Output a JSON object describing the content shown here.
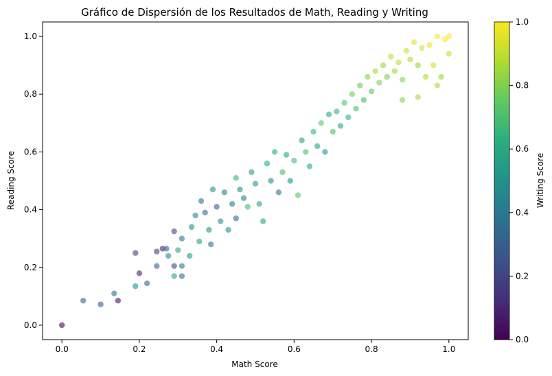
{
  "chart_data": {
    "type": "scatter",
    "title": "Gráfico de Dispersión de los Resultados de Math, Reading y Writing",
    "xlabel": "Math Score",
    "ylabel": "Reading Score",
    "xlim": [
      -0.05,
      1.05
    ],
    "ylim": [
      -0.05,
      1.05
    ],
    "xticks": [
      "0.0",
      "0.2",
      "0.4",
      "0.6",
      "0.8",
      "1.0"
    ],
    "yticks": [
      "0.0",
      "0.2",
      "0.4",
      "0.6",
      "0.8",
      "1.0"
    ],
    "grid": false,
    "colorbar": {
      "label": "Writing Score",
      "colormap": "viridis",
      "range": [
        0,
        1
      ],
      "ticks": [
        "0.0",
        "0.2",
        "0.4",
        "0.6",
        "0.8",
        "1.0"
      ]
    },
    "marker_alpha": 0.6,
    "points": [
      [
        0.0,
        0.0,
        0.0
      ],
      [
        0.055,
        0.085,
        0.32
      ],
      [
        0.1,
        0.072,
        0.3
      ],
      [
        0.135,
        0.11,
        0.38
      ],
      [
        0.145,
        0.085,
        0.05
      ],
      [
        0.19,
        0.25,
        0.18
      ],
      [
        0.19,
        0.135,
        0.5
      ],
      [
        0.2,
        0.18,
        0.1
      ],
      [
        0.22,
        0.145,
        0.34
      ],
      [
        0.245,
        0.205,
        0.3
      ],
      [
        0.245,
        0.255,
        0.18
      ],
      [
        0.26,
        0.265,
        0.1
      ],
      [
        0.27,
        0.265,
        0.3
      ],
      [
        0.275,
        0.24,
        0.48
      ],
      [
        0.29,
        0.205,
        0.22
      ],
      [
        0.29,
        0.17,
        0.6
      ],
      [
        0.29,
        0.325,
        0.2
      ],
      [
        0.31,
        0.205,
        0.4
      ],
      [
        0.31,
        0.17,
        0.36
      ],
      [
        0.3,
        0.26,
        0.6
      ],
      [
        0.31,
        0.3,
        0.38
      ],
      [
        0.33,
        0.24,
        0.55
      ],
      [
        0.335,
        0.34,
        0.5
      ],
      [
        0.345,
        0.38,
        0.45
      ],
      [
        0.355,
        0.29,
        0.58
      ],
      [
        0.36,
        0.43,
        0.4
      ],
      [
        0.37,
        0.39,
        0.35
      ],
      [
        0.38,
        0.33,
        0.52
      ],
      [
        0.385,
        0.28,
        0.4
      ],
      [
        0.39,
        0.47,
        0.5
      ],
      [
        0.4,
        0.41,
        0.3
      ],
      [
        0.41,
        0.36,
        0.5
      ],
      [
        0.42,
        0.46,
        0.45
      ],
      [
        0.43,
        0.33,
        0.5
      ],
      [
        0.44,
        0.42,
        0.4
      ],
      [
        0.45,
        0.51,
        0.65
      ],
      [
        0.45,
        0.37,
        0.35
      ],
      [
        0.46,
        0.47,
        0.5
      ],
      [
        0.47,
        0.44,
        0.45
      ],
      [
        0.48,
        0.41,
        0.68
      ],
      [
        0.49,
        0.53,
        0.55
      ],
      [
        0.5,
        0.49,
        0.52
      ],
      [
        0.51,
        0.42,
        0.6
      ],
      [
        0.52,
        0.36,
        0.58
      ],
      [
        0.53,
        0.56,
        0.6
      ],
      [
        0.54,
        0.5,
        0.48
      ],
      [
        0.55,
        0.6,
        0.62
      ],
      [
        0.56,
        0.46,
        0.4
      ],
      [
        0.57,
        0.53,
        0.7
      ],
      [
        0.58,
        0.59,
        0.6
      ],
      [
        0.59,
        0.5,
        0.5
      ],
      [
        0.6,
        0.57,
        0.68
      ],
      [
        0.61,
        0.45,
        0.72
      ],
      [
        0.62,
        0.64,
        0.55
      ],
      [
        0.63,
        0.6,
        0.7
      ],
      [
        0.64,
        0.55,
        0.62
      ],
      [
        0.65,
        0.67,
        0.66
      ],
      [
        0.66,
        0.62,
        0.58
      ],
      [
        0.67,
        0.7,
        0.74
      ],
      [
        0.68,
        0.6,
        0.5
      ],
      [
        0.69,
        0.73,
        0.62
      ],
      [
        0.7,
        0.67,
        0.7
      ],
      [
        0.71,
        0.74,
        0.66
      ],
      [
        0.72,
        0.69,
        0.6
      ],
      [
        0.73,
        0.77,
        0.72
      ],
      [
        0.74,
        0.72,
        0.64
      ],
      [
        0.75,
        0.8,
        0.78
      ],
      [
        0.76,
        0.75,
        0.7
      ],
      [
        0.77,
        0.83,
        0.76
      ],
      [
        0.78,
        0.78,
        0.68
      ],
      [
        0.79,
        0.86,
        0.82
      ],
      [
        0.8,
        0.81,
        0.74
      ],
      [
        0.81,
        0.88,
        0.86
      ],
      [
        0.82,
        0.84,
        0.8
      ],
      [
        0.83,
        0.9,
        0.84
      ],
      [
        0.84,
        0.86,
        0.78
      ],
      [
        0.85,
        0.93,
        0.9
      ],
      [
        0.86,
        0.88,
        0.86
      ],
      [
        0.87,
        0.91,
        0.9
      ],
      [
        0.88,
        0.85,
        0.8
      ],
      [
        0.89,
        0.95,
        0.92
      ],
      [
        0.9,
        0.92,
        0.88
      ],
      [
        0.91,
        0.98,
        0.96
      ],
      [
        0.92,
        0.9,
        0.84
      ],
      [
        0.93,
        0.96,
        0.94
      ],
      [
        0.94,
        0.86,
        0.88
      ],
      [
        0.95,
        0.97,
        0.98
      ],
      [
        0.96,
        0.9,
        0.92
      ],
      [
        0.97,
        1.0,
        1.0
      ],
      [
        0.98,
        0.86,
        0.85
      ],
      [
        0.99,
        0.99,
        1.0
      ],
      [
        1.0,
        1.0,
        1.0
      ],
      [
        1.0,
        0.94,
        0.92
      ],
      [
        0.97,
        0.83,
        0.88
      ],
      [
        0.92,
        0.79,
        0.86
      ],
      [
        0.88,
        0.78,
        0.82
      ]
    ]
  }
}
